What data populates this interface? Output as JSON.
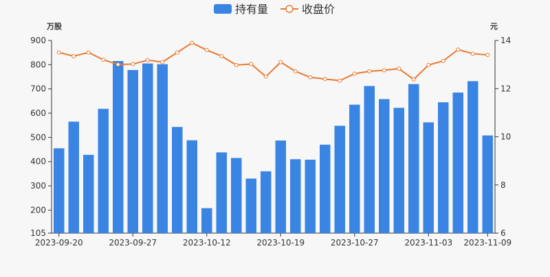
{
  "chart_data": {
    "type": "bar+line",
    "legend": {
      "placement": "top-center",
      "items": [
        {
          "label": "持有量",
          "marker": "bar",
          "color": "#3a84e4"
        },
        {
          "label": "收盘价",
          "marker": "line",
          "color": "#e8792f"
        }
      ]
    },
    "y_left": {
      "unit_label": "万股",
      "min": 105,
      "max": 900,
      "ticks": [
        105,
        200,
        300,
        400,
        500,
        600,
        700,
        800,
        900
      ]
    },
    "y_right": {
      "unit_label": "元",
      "min": 6,
      "max": 14,
      "ticks": [
        6,
        8,
        10,
        12,
        14
      ]
    },
    "x_tick_labels": [
      {
        "index": 0,
        "label": "2023-09-20"
      },
      {
        "index": 5,
        "label": "2023-09-27"
      },
      {
        "index": 10,
        "label": "2023-10-12"
      },
      {
        "index": 15,
        "label": "2023-10-19"
      },
      {
        "index": 20,
        "label": "2023-10-27"
      },
      {
        "index": 25,
        "label": "2023-11-03"
      },
      {
        "index": 29,
        "label": "2023-11-09"
      }
    ],
    "holdings": [
      455,
      565,
      428,
      618,
      815,
      778,
      805,
      802,
      543,
      488,
      208,
      438,
      415,
      330,
      360,
      487,
      410,
      408,
      470,
      548,
      635,
      712,
      658,
      622,
      720,
      562,
      645,
      685,
      732,
      508
    ],
    "close_price": [
      13.5,
      13.35,
      13.5,
      13.2,
      13.0,
      13.02,
      13.18,
      13.1,
      13.5,
      13.9,
      13.6,
      13.35,
      12.98,
      13.02,
      12.5,
      13.1,
      12.72,
      12.47,
      12.4,
      12.33,
      12.62,
      12.72,
      12.76,
      12.83,
      12.38,
      12.98,
      13.15,
      13.62,
      13.45,
      13.4
    ],
    "colors": {
      "bar": "#3a84e4",
      "line": "#e8792f",
      "marker_fill": "#ffffff",
      "axis": "#333333",
      "text": "#333333"
    }
  }
}
